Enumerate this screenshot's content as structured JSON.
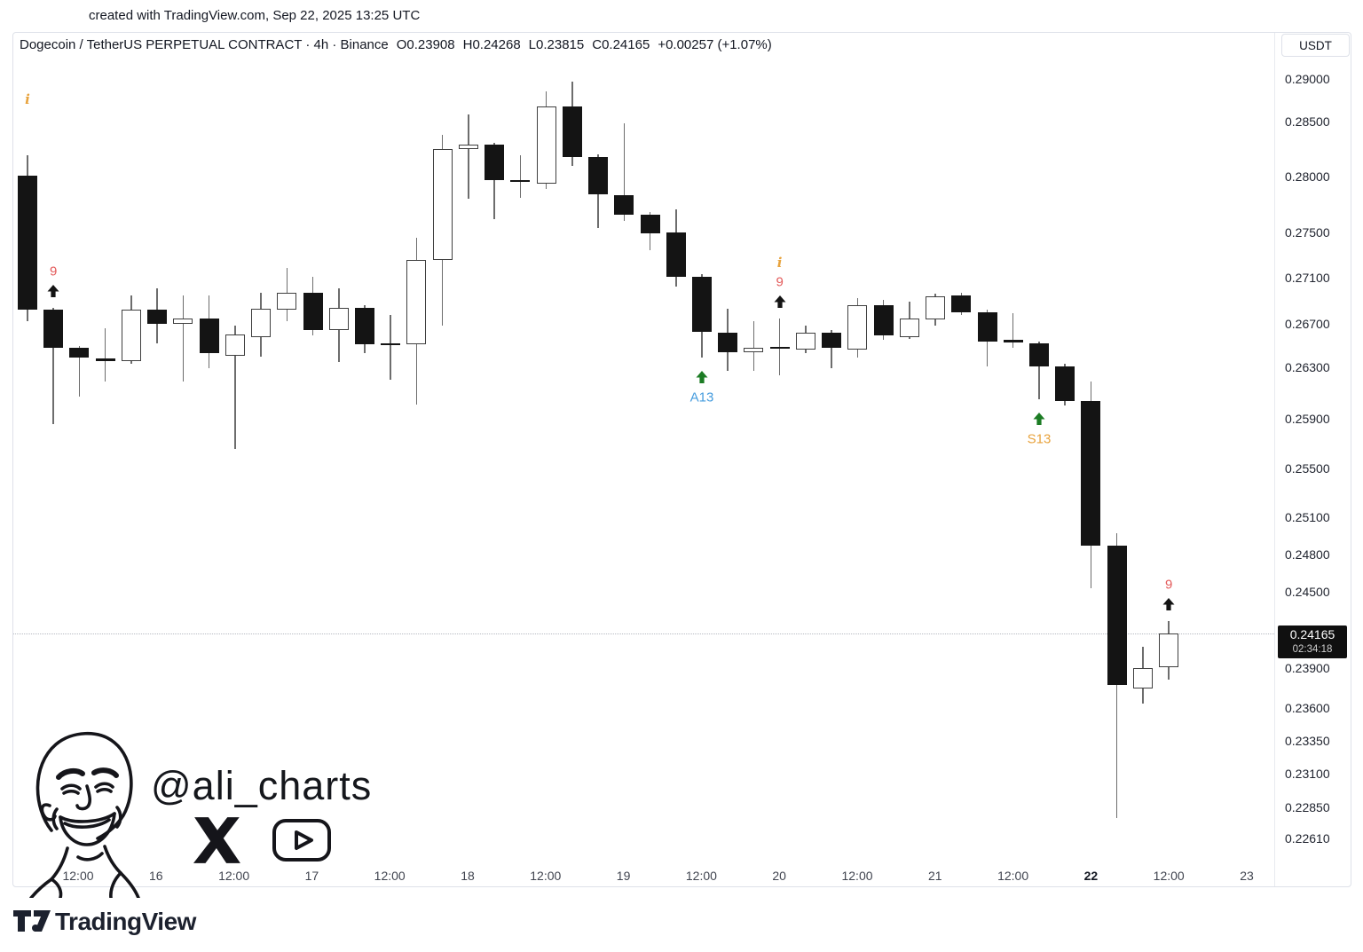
{
  "page": {
    "top_note": "created with TradingView.com, Sep 22, 2025 13:25 UTC"
  },
  "header": {
    "title": "Dogecoin / TetherUS PERPETUAL CONTRACT · 4h · Binance",
    "open": "O0.23908",
    "high": "H0.24268",
    "low": "L0.23815",
    "close": "C0.24165",
    "change": "+0.00257 (+1.07%)"
  },
  "axis": {
    "currency_button": "USDT",
    "price_ticks": [
      "0.29000",
      "0.28500",
      "0.28000",
      "0.27500",
      "0.27100",
      "0.26700",
      "0.26300",
      "0.25900",
      "0.25500",
      "0.25100",
      "0.24800",
      "0.24500",
      "0.23900",
      "0.23600",
      "0.23350",
      "0.23100",
      "0.22850",
      "0.22610"
    ],
    "time_ticks": [
      {
        "label": "12:00",
        "bold": false
      },
      {
        "label": "16",
        "bold": false
      },
      {
        "label": "12:00",
        "bold": false
      },
      {
        "label": "17",
        "bold": false
      },
      {
        "label": "12:00",
        "bold": false
      },
      {
        "label": "18",
        "bold": false
      },
      {
        "label": "12:00",
        "bold": false
      },
      {
        "label": "19",
        "bold": false
      },
      {
        "label": "12:00",
        "bold": false
      },
      {
        "label": "20",
        "bold": false
      },
      {
        "label": "12:00",
        "bold": false
      },
      {
        "label": "21",
        "bold": false
      },
      {
        "label": "12:00",
        "bold": false
      },
      {
        "label": "22",
        "bold": true
      },
      {
        "label": "12:00",
        "bold": false
      },
      {
        "label": "23",
        "bold": false
      }
    ]
  },
  "price_label": {
    "price": "0.24165",
    "countdown": "02:34:18"
  },
  "watermark": {
    "handle": "@ali_charts"
  },
  "footer": {
    "brand": "TradingView"
  },
  "symbols": {
    "nine": "9",
    "info": "i"
  },
  "colors": {
    "up": "#ffffff",
    "down": "#141414",
    "wick": "#6d6d6d",
    "red": "#E35A5A",
    "green": "#1C7C24",
    "blue": "#459CDE",
    "orange": "#E8A33D",
    "black_arrow": "#141414",
    "label_bg": "#101010",
    "grid": "#dee1e9"
  },
  "chart_data": {
    "type": "candlestick",
    "title": "Dogecoin / TetherUS PERPETUAL CONTRACT",
    "interval": "4h",
    "exchange": "Binance",
    "quote_currency": "USDT",
    "current_price": 0.24165,
    "countdown": "02:34:18",
    "last_bar_ohlc": {
      "o": 0.23908,
      "h": 0.24268,
      "l": 0.23815,
      "c": 0.24165
    },
    "price_axis_range": [
      0.2261,
      0.29
    ],
    "grid": "off",
    "candles": [
      {
        "o": 0.2801,
        "h": 0.2819,
        "l": 0.2672,
        "c": 0.2682
      },
      {
        "o": 0.2682,
        "h": 0.2684,
        "l": 0.2586,
        "c": 0.2648
      },
      {
        "o": 0.2648,
        "h": 0.265,
        "l": 0.2607,
        "c": 0.2639
      },
      {
        "o": 0.2638,
        "h": 0.2666,
        "l": 0.2619,
        "c": 0.2637
      },
      {
        "o": 0.2636,
        "h": 0.2695,
        "l": 0.2633,
        "c": 0.2682
      },
      {
        "o": 0.2682,
        "h": 0.2701,
        "l": 0.2652,
        "c": 0.267
      },
      {
        "o": 0.267,
        "h": 0.2695,
        "l": 0.2619,
        "c": 0.2675
      },
      {
        "o": 0.2675,
        "h": 0.2695,
        "l": 0.2629,
        "c": 0.2643
      },
      {
        "o": 0.2641,
        "h": 0.2668,
        "l": 0.2566,
        "c": 0.266
      },
      {
        "o": 0.2658,
        "h": 0.2697,
        "l": 0.264,
        "c": 0.2683
      },
      {
        "o": 0.2682,
        "h": 0.2719,
        "l": 0.2672,
        "c": 0.2697
      },
      {
        "o": 0.2697,
        "h": 0.2711,
        "l": 0.2659,
        "c": 0.2664
      },
      {
        "o": 0.2664,
        "h": 0.2701,
        "l": 0.2635,
        "c": 0.2684
      },
      {
        "o": 0.2684,
        "h": 0.2686,
        "l": 0.2643,
        "c": 0.2651
      },
      {
        "o": 0.2652,
        "h": 0.2678,
        "l": 0.262,
        "c": 0.2651
      },
      {
        "o": 0.2651,
        "h": 0.2745,
        "l": 0.2601,
        "c": 0.2726
      },
      {
        "o": 0.2726,
        "h": 0.2838,
        "l": 0.2668,
        "c": 0.2825
      },
      {
        "o": 0.2825,
        "h": 0.2858,
        "l": 0.278,
        "c": 0.2829
      },
      {
        "o": 0.2829,
        "h": 0.2831,
        "l": 0.2762,
        "c": 0.2797
      },
      {
        "o": 0.2797,
        "h": 0.2819,
        "l": 0.2781,
        "c": 0.2796
      },
      {
        "o": 0.2794,
        "h": 0.2885,
        "l": 0.2789,
        "c": 0.2868
      },
      {
        "o": 0.2868,
        "h": 0.2897,
        "l": 0.281,
        "c": 0.2818
      },
      {
        "o": 0.2818,
        "h": 0.282,
        "l": 0.2754,
        "c": 0.2784
      },
      {
        "o": 0.2783,
        "h": 0.2848,
        "l": 0.276,
        "c": 0.2766
      },
      {
        "o": 0.2766,
        "h": 0.2768,
        "l": 0.2734,
        "c": 0.2749
      },
      {
        "o": 0.275,
        "h": 0.2771,
        "l": 0.2702,
        "c": 0.2711
      },
      {
        "o": 0.2711,
        "h": 0.2713,
        "l": 0.2639,
        "c": 0.2663
      },
      {
        "o": 0.2662,
        "h": 0.2683,
        "l": 0.2627,
        "c": 0.2644
      },
      {
        "o": 0.2644,
        "h": 0.2672,
        "l": 0.2627,
        "c": 0.2648
      },
      {
        "o": 0.2649,
        "h": 0.2675,
        "l": 0.2624,
        "c": 0.2648
      },
      {
        "o": 0.2646,
        "h": 0.2668,
        "l": 0.2643,
        "c": 0.2662
      },
      {
        "o": 0.2662,
        "h": 0.2664,
        "l": 0.2629,
        "c": 0.2648
      },
      {
        "o": 0.2646,
        "h": 0.2692,
        "l": 0.2639,
        "c": 0.2686
      },
      {
        "o": 0.2686,
        "h": 0.2691,
        "l": 0.2655,
        "c": 0.2659
      },
      {
        "o": 0.2658,
        "h": 0.2689,
        "l": 0.2656,
        "c": 0.2675
      },
      {
        "o": 0.2674,
        "h": 0.2696,
        "l": 0.2668,
        "c": 0.2694
      },
      {
        "o": 0.2695,
        "h": 0.2697,
        "l": 0.2678,
        "c": 0.268
      },
      {
        "o": 0.268,
        "h": 0.2682,
        "l": 0.2631,
        "c": 0.2654
      },
      {
        "o": 0.2655,
        "h": 0.2679,
        "l": 0.2648,
        "c": 0.2654
      },
      {
        "o": 0.2652,
        "h": 0.2654,
        "l": 0.2605,
        "c": 0.2631
      },
      {
        "o": 0.2631,
        "h": 0.2633,
        "l": 0.26,
        "c": 0.2604
      },
      {
        "o": 0.2604,
        "h": 0.2619,
        "l": 0.2453,
        "c": 0.2487
      },
      {
        "o": 0.2487,
        "h": 0.2497,
        "l": 0.2277,
        "c": 0.2377
      },
      {
        "o": 0.2375,
        "h": 0.2406,
        "l": 0.2363,
        "c": 0.239
      },
      {
        "o": 0.23908,
        "h": 0.24268,
        "l": 0.23815,
        "c": 0.24165
      }
    ],
    "markers": [
      {
        "candle": 1,
        "side": "above",
        "items": [
          "info"
        ]
      },
      {
        "candle": 2,
        "side": "above",
        "items": [
          "arrow",
          "nine"
        ]
      },
      {
        "candle": 27,
        "side": "below",
        "items": [
          "green-arrow"
        ],
        "label": "A13",
        "label_color": "#459CDE"
      },
      {
        "candle": 30,
        "side": "above",
        "items": [
          "arrow",
          "nine",
          "info"
        ]
      },
      {
        "candle": 40,
        "side": "below",
        "items": [
          "green-arrow"
        ],
        "label": "S13",
        "label_color": "#E8A33D"
      },
      {
        "candle": 45,
        "side": "above",
        "items": [
          "arrow",
          "nine"
        ]
      }
    ]
  }
}
